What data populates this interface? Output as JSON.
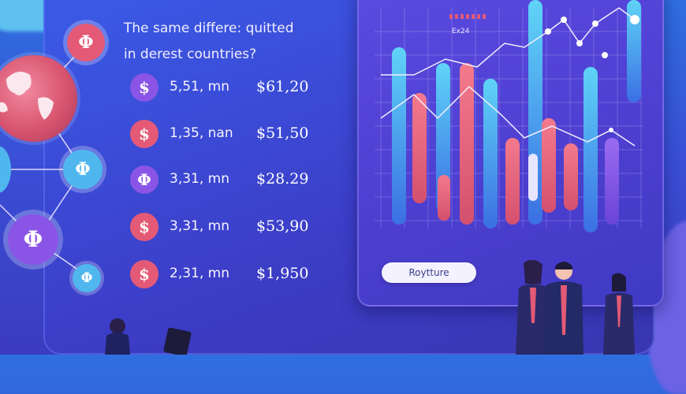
{
  "question": {
    "line1": "The same differe: quitted",
    "line2": "in derest countries?"
  },
  "rows": [
    {
      "coin_symbol": "$",
      "coin_color": "#8a55e6",
      "amount": "5,51, mn",
      "price": "$61,20"
    },
    {
      "coin_symbol": "$",
      "coin_color": "#e45a76",
      "amount": "1,35, nan",
      "price": "$51,50"
    },
    {
      "coin_symbol": "Φ",
      "coin_color": "#8a55e6",
      "amount": "3,31, mn",
      "price": "$28.29"
    },
    {
      "coin_symbol": "$",
      "coin_color": "#e45a76",
      "amount": "3,31, mn",
      "price": "$53,90"
    },
    {
      "coin_symbol": "$",
      "coin_color": "#e45a76",
      "amount": "2,31, mn",
      "price": "$1,950"
    }
  ],
  "network": {
    "nodes": [
      {
        "symbol": "Φ",
        "color": "#e45a76"
      },
      {
        "symbol": "Φ",
        "color": "#4fb7ee"
      },
      {
        "symbol": "Φ",
        "color": "#8a55e6"
      },
      {
        "symbol": "Φ",
        "color": "#4fb7ee"
      }
    ],
    "globe_icon": "globe-icon"
  },
  "panel": {
    "legend_label": "Ex24",
    "button_label": "Roytture"
  },
  "colors": {
    "accent_pink": "#e45a76",
    "accent_blue": "#4fb7ee",
    "accent_purple": "#8a55e6"
  }
}
